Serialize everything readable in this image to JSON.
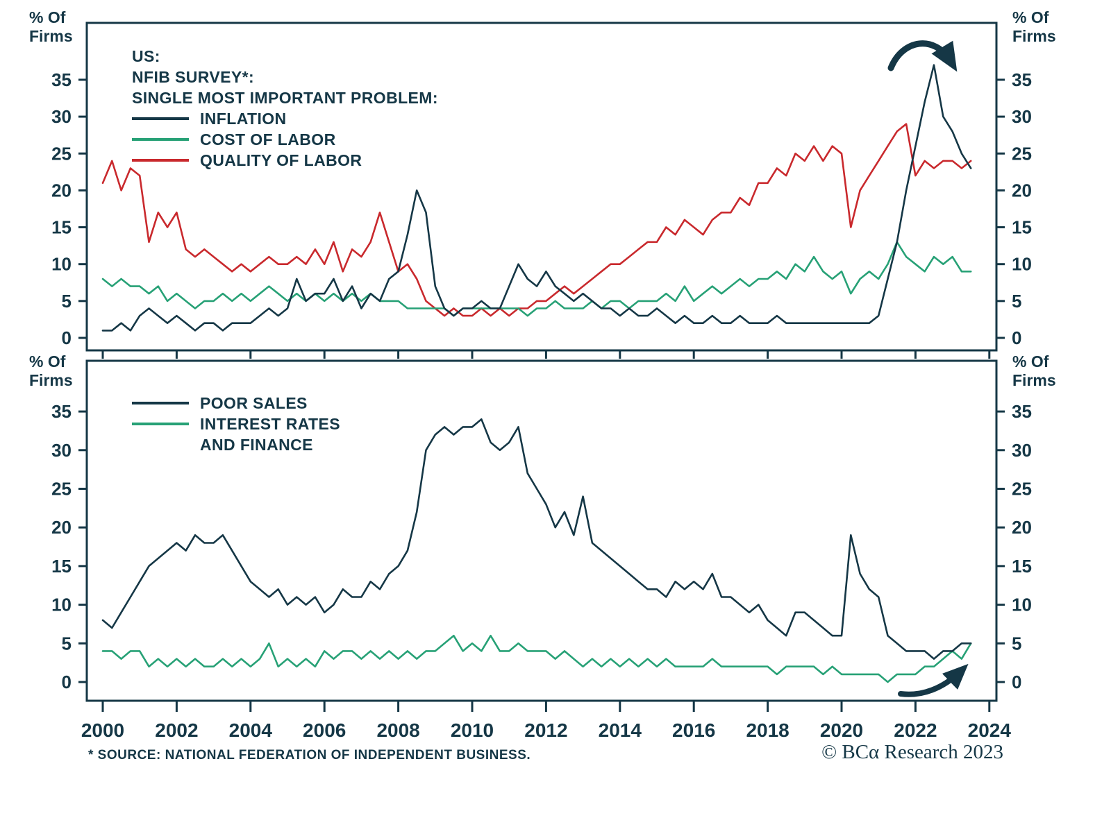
{
  "colors": {
    "navy": "#153746",
    "green": "#27A176",
    "red": "#C9292D"
  },
  "axes": {
    "y_axis_label_line1": "% Of",
    "y_axis_label_line2": "Firms",
    "y_ticks": [
      35,
      30,
      25,
      20,
      15,
      10,
      5,
      0
    ],
    "x_ticks": [
      2000,
      2002,
      2004,
      2006,
      2008,
      2010,
      2012,
      2014,
      2016,
      2018,
      2020,
      2022,
      2024
    ]
  },
  "top_legend": {
    "title_lines": [
      "US:",
      "NFIB SURVEY*:",
      "SINGLE MOST IMPORTANT PROBLEM:"
    ]
  },
  "bottom_legend": {
    "items": [
      {
        "label": "POOR SALES"
      },
      {
        "label": "INTEREST RATES",
        "label2": "AND FINANCE"
      }
    ]
  },
  "footer": {
    "source_note": "* SOURCE: NATIONAL FEDERATION OF INDEPENDENT BUSINESS.",
    "copyright": "© BCα Research 2023"
  },
  "chart_data": [
    {
      "type": "line",
      "title": "US: NFIB SURVEY*: SINGLE MOST IMPORTANT PROBLEM:",
      "xlabel": "",
      "ylabel": "% Of Firms",
      "xlim": [
        1999.8,
        2024.3
      ],
      "ylim": [
        0,
        42.7
      ],
      "grid": false,
      "legend_position": "top-left",
      "x": [
        2000,
        2000.25,
        2000.5,
        2000.75,
        2001,
        2001.25,
        2001.5,
        2001.75,
        2002,
        2002.25,
        2002.5,
        2002.75,
        2003,
        2003.25,
        2003.5,
        2003.75,
        2004,
        2004.25,
        2004.5,
        2004.75,
        2005,
        2005.25,
        2005.5,
        2005.75,
        2006,
        2006.25,
        2006.5,
        2006.75,
        2007,
        2007.25,
        2007.5,
        2007.75,
        2008,
        2008.25,
        2008.5,
        2008.75,
        2009,
        2009.25,
        2009.5,
        2009.75,
        2010,
        2010.25,
        2010.5,
        2010.75,
        2011,
        2011.25,
        2011.5,
        2011.75,
        2012,
        2012.25,
        2012.5,
        2012.75,
        2013,
        2013.25,
        2013.5,
        2013.75,
        2014,
        2014.25,
        2014.5,
        2014.75,
        2015,
        2015.25,
        2015.5,
        2015.75,
        2016,
        2016.25,
        2016.5,
        2016.75,
        2017,
        2017.25,
        2017.5,
        2017.75,
        2018,
        2018.25,
        2018.5,
        2018.75,
        2019,
        2019.25,
        2019.5,
        2019.75,
        2020,
        2020.25,
        2020.5,
        2020.75,
        2021,
        2021.25,
        2021.5,
        2021.75,
        2022,
        2022.25,
        2022.5,
        2022.75,
        2023,
        2023.25,
        2023.5
      ],
      "series": [
        {
          "name": "INFLATION",
          "color": "#153746",
          "values": [
            1,
            1,
            2,
            1,
            3,
            4,
            3,
            2,
            3,
            2,
            1,
            2,
            2,
            1,
            2,
            2,
            2,
            3,
            4,
            3,
            4,
            8,
            5,
            6,
            6,
            8,
            5,
            7,
            4,
            6,
            5,
            8,
            9,
            14,
            20,
            17,
            7,
            4,
            3,
            4,
            4,
            5,
            4,
            4,
            7,
            10,
            8,
            7,
            9,
            7,
            6,
            5,
            6,
            5,
            4,
            4,
            3,
            4,
            3,
            3,
            4,
            3,
            2,
            3,
            2,
            2,
            3,
            2,
            2,
            3,
            2,
            2,
            2,
            3,
            2,
            2,
            2,
            2,
            2,
            2,
            2,
            2,
            2,
            2,
            3,
            8,
            13,
            20,
            26,
            32,
            37,
            30,
            28,
            25,
            23
          ]
        },
        {
          "name": "COST OF LABOR",
          "color": "#27A176",
          "values": [
            8,
            7,
            8,
            7,
            7,
            6,
            7,
            5,
            6,
            5,
            4,
            5,
            5,
            6,
            5,
            6,
            5,
            6,
            7,
            6,
            5,
            6,
            5,
            6,
            5,
            6,
            5,
            6,
            5,
            6,
            5,
            5,
            5,
            4,
            4,
            4,
            4,
            4,
            3,
            4,
            4,
            4,
            4,
            4,
            4,
            4,
            3,
            4,
            4,
            5,
            4,
            4,
            4,
            5,
            4,
            5,
            5,
            4,
            5,
            5,
            5,
            6,
            5,
            7,
            5,
            6,
            7,
            6,
            7,
            8,
            7,
            8,
            8,
            9,
            8,
            10,
            9,
            11,
            9,
            8,
            9,
            6,
            8,
            9,
            8,
            10,
            13,
            11,
            10,
            9,
            11,
            10,
            11,
            9,
            9
          ]
        },
        {
          "name": "QUALITY OF LABOR",
          "color": "#C9292D",
          "values": [
            21,
            24,
            20,
            23,
            22,
            13,
            17,
            15,
            17,
            12,
            11,
            12,
            11,
            10,
            9,
            10,
            9,
            10,
            11,
            10,
            10,
            11,
            10,
            12,
            10,
            13,
            9,
            12,
            11,
            13,
            17,
            13,
            9,
            10,
            8,
            5,
            4,
            3,
            4,
            3,
            3,
            4,
            3,
            4,
            3,
            4,
            4,
            5,
            5,
            6,
            7,
            6,
            7,
            8,
            9,
            10,
            10,
            11,
            12,
            13,
            13,
            15,
            14,
            16,
            15,
            14,
            16,
            17,
            17,
            19,
            18,
            21,
            21,
            23,
            22,
            25,
            24,
            26,
            24,
            26,
            25,
            15,
            20,
            22,
            24,
            26,
            28,
            29,
            22,
            24,
            23,
            24,
            24,
            23,
            24
          ]
        }
      ]
    },
    {
      "type": "line",
      "title": "",
      "xlabel": "",
      "ylabel": "% Of Firms",
      "xlim": [
        1999.8,
        2024.3
      ],
      "ylim": [
        0,
        41.5
      ],
      "grid": false,
      "legend_position": "top-left",
      "x": [
        2000,
        2000.25,
        2000.5,
        2000.75,
        2001,
        2001.25,
        2001.5,
        2001.75,
        2002,
        2002.25,
        2002.5,
        2002.75,
        2003,
        2003.25,
        2003.5,
        2003.75,
        2004,
        2004.25,
        2004.5,
        2004.75,
        2005,
        2005.25,
        2005.5,
        2005.75,
        2006,
        2006.25,
        2006.5,
        2006.75,
        2007,
        2007.25,
        2007.5,
        2007.75,
        2008,
        2008.25,
        2008.5,
        2008.75,
        2009,
        2009.25,
        2009.5,
        2009.75,
        2010,
        2010.25,
        2010.5,
        2010.75,
        2011,
        2011.25,
        2011.5,
        2011.75,
        2012,
        2012.25,
        2012.5,
        2012.75,
        2013,
        2013.25,
        2013.5,
        2013.75,
        2014,
        2014.25,
        2014.5,
        2014.75,
        2015,
        2015.25,
        2015.5,
        2015.75,
        2016,
        2016.25,
        2016.5,
        2016.75,
        2017,
        2017.25,
        2017.5,
        2017.75,
        2018,
        2018.25,
        2018.5,
        2018.75,
        2019,
        2019.25,
        2019.5,
        2019.75,
        2020,
        2020.25,
        2020.5,
        2020.75,
        2021,
        2021.25,
        2021.5,
        2021.75,
        2022,
        2022.25,
        2022.5,
        2022.75,
        2023,
        2023.25,
        2023.5
      ],
      "series": [
        {
          "name": "POOR SALES",
          "color": "#153746",
          "values": [
            8,
            7,
            9,
            11,
            13,
            15,
            16,
            17,
            18,
            17,
            19,
            18,
            18,
            19,
            17,
            15,
            13,
            12,
            11,
            12,
            10,
            11,
            10,
            11,
            9,
            10,
            12,
            11,
            11,
            13,
            12,
            14,
            15,
            17,
            22,
            30,
            32,
            33,
            32,
            33,
            33,
            34,
            31,
            30,
            31,
            33,
            27,
            25,
            23,
            20,
            22,
            19,
            24,
            18,
            17,
            16,
            15,
            14,
            13,
            12,
            12,
            11,
            13,
            12,
            13,
            12,
            14,
            11,
            11,
            10,
            9,
            10,
            8,
            7,
            6,
            9,
            9,
            8,
            7,
            6,
            6,
            19,
            14,
            12,
            11,
            6,
            5,
            4,
            4,
            4,
            3,
            4,
            4,
            5,
            5
          ]
        },
        {
          "name": "INTEREST RATES AND FINANCE",
          "color": "#27A176",
          "values": [
            4,
            4,
            3,
            4,
            4,
            2,
            3,
            2,
            3,
            2,
            3,
            2,
            2,
            3,
            2,
            3,
            2,
            3,
            5,
            2,
            3,
            2,
            3,
            2,
            4,
            3,
            4,
            4,
            3,
            4,
            3,
            4,
            3,
            4,
            3,
            4,
            4,
            5,
            6,
            4,
            5,
            4,
            6,
            4,
            4,
            5,
            4,
            4,
            4,
            3,
            4,
            3,
            2,
            3,
            2,
            3,
            2,
            3,
            2,
            3,
            2,
            3,
            2,
            2,
            2,
            2,
            3,
            2,
            2,
            2,
            2,
            2,
            2,
            1,
            2,
            2,
            2,
            2,
            1,
            2,
            1,
            1,
            1,
            1,
            1,
            0,
            1,
            1,
            1,
            2,
            2,
            3,
            4,
            3,
            5
          ]
        }
      ]
    }
  ]
}
